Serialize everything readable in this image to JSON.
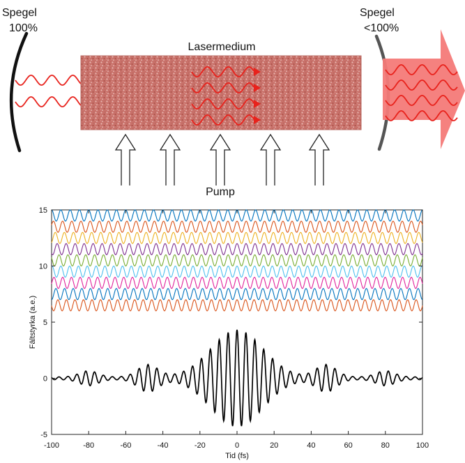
{
  "diagram": {
    "left_mirror": {
      "title": "Spegel",
      "reflectivity": "100%"
    },
    "right_mirror": {
      "title": "Spegel",
      "reflectivity": "<100%"
    },
    "medium_label": "Lasermedium",
    "pump_label": "Pump",
    "pump_arrow_count": 5,
    "colors": {
      "mirror_left": "#111111",
      "mirror_right": "#555555",
      "medium_fill": "#c87168",
      "wave": "#e8221c",
      "output_beam": "#f47a78"
    }
  },
  "chart_data": {
    "type": "line",
    "xlabel": "Tid (fs)",
    "ylabel": "Fältstyrka (a.e.)",
    "xlim": [
      -100,
      100
    ],
    "ylim": [
      -5,
      15
    ],
    "xticks": [
      "-100",
      "-80",
      "-60",
      "-40",
      "-20",
      "0",
      "20",
      "40",
      "60",
      "80",
      "100"
    ],
    "yticks": [
      "-5",
      "0",
      "5",
      "10",
      "15"
    ],
    "grid": false,
    "legend": "none",
    "mode_offsets": [
      14.5,
      13.5,
      12.5,
      11.5,
      10.5,
      9.5,
      8.5,
      7.5,
      6.5
    ],
    "mode_amplitude": 0.5,
    "mode_colors": [
      "#0072BD",
      "#D95319",
      "#EDB120",
      "#7E2F8E",
      "#77AC30",
      "#4DBEEE",
      "#E0219B",
      "#0072BD",
      "#D95319"
    ],
    "mode_periods_fs": [
      5.0,
      4.95,
      4.9,
      4.85,
      4.8,
      4.75,
      4.7,
      4.65,
      4.6
    ],
    "sum_color": "#000000",
    "sum_peak": 4.2,
    "sum_envelope_width_fs": 14,
    "sum_period_fs": 4.8
  }
}
